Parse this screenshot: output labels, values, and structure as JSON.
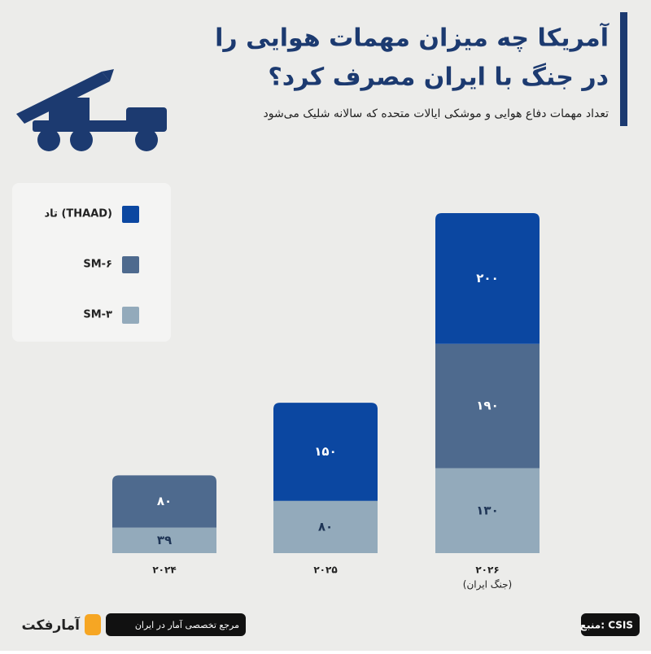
{
  "chart_data": {
    "type": "stacked_bar",
    "title": [
      "آمریکا چه میزان مهمات هوایی را",
      "در جنگ با ایران مصرف کرد؟"
    ],
    "subtitle": "تعداد مهمات دفاع هوایی و موشکی ایالات متحده که سالانه شلیک می‌شود",
    "categories": [
      "۲۰۲۴",
      "۲۰۲۵",
      "۲۰۲۶"
    ],
    "category_notes": [
      null,
      null,
      "(جنگ ایران)"
    ],
    "series": [
      {
        "name": "SM-۳",
        "color": "#93aabb",
        "label_color": "#1f3556",
        "values": [
          39,
          80,
          130
        ],
        "value_labels": [
          "۳۹",
          "۸۰",
          "۱۳۰"
        ]
      },
      {
        "name": "SM-۶",
        "color": "#4e6a8e",
        "label_color": "#ffffff",
        "values": [
          80,
          null,
          190
        ],
        "value_labels": [
          "۸۰",
          null,
          "۱۹۰"
        ]
      },
      {
        "name": "تاد (THAAD)",
        "color": "#0b47a1",
        "label_color": "#ffffff",
        "values": [
          null,
          150,
          200
        ],
        "value_labels": [
          null,
          "۱۵۰",
          "۲۰۰"
        ]
      }
    ],
    "source": "منبع: CSIS",
    "tagline": "مرجع تخصصی آمار در ایران",
    "brand": "آمارفکت"
  }
}
